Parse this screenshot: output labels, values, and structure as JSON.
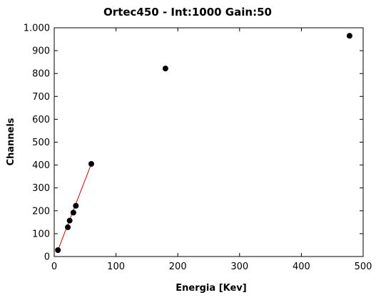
{
  "chart_data": {
    "type": "scatter",
    "title": "Ortec450 - Int:1000 Gain:50",
    "xlabel": "Energia [Kev]",
    "ylabel": "Channels",
    "xlim": [
      0,
      500
    ],
    "ylim": [
      0,
      1000
    ],
    "x_ticks": [
      0,
      100,
      200,
      300,
      400,
      500
    ],
    "x_tick_labels": [
      "0",
      "100",
      "200",
      "300",
      "400",
      "500"
    ],
    "y_ticks": [
      0,
      100,
      200,
      300,
      400,
      500,
      600,
      700,
      800,
      900,
      1000
    ],
    "y_tick_labels": [
      "0",
      "100",
      "200",
      "300",
      "400",
      "500",
      "600",
      "700",
      "800",
      "900",
      "1.000"
    ],
    "grid": false,
    "series": [
      {
        "kind": "scatter",
        "color": "#000000",
        "points": [
          {
            "x": 6,
            "y": 28
          },
          {
            "x": 22,
            "y": 128
          },
          {
            "x": 25,
            "y": 157
          },
          {
            "x": 31,
            "y": 192
          },
          {
            "x": 35,
            "y": 222
          },
          {
            "x": 60,
            "y": 405
          },
          {
            "x": 180,
            "y": 822
          },
          {
            "x": 478,
            "y": 965
          }
        ]
      },
      {
        "kind": "line",
        "color": "#cc0000",
        "points": [
          {
            "x": 6,
            "y": 28
          },
          {
            "x": 60,
            "y": 405
          }
        ]
      }
    ]
  }
}
